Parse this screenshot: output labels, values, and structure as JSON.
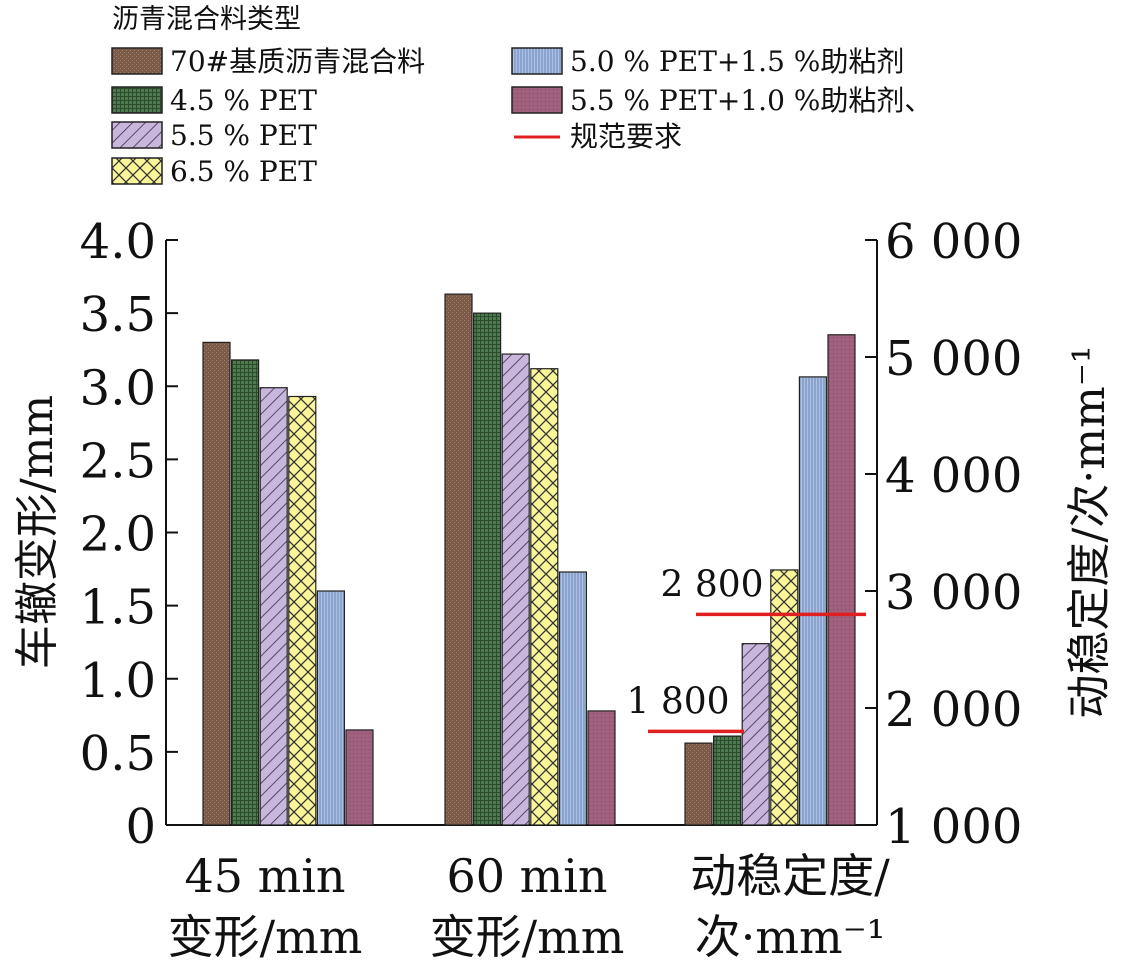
{
  "chart_data": {
    "type": "bar",
    "legend_title": "沥青混合料类型",
    "legend_placement": "top",
    "categories": [
      [
        "45 min",
        "变形/mm"
      ],
      [
        "60 min",
        "变形/mm"
      ],
      [
        "动稳定度/",
        "次·mm⁻¹"
      ]
    ],
    "ylabel": "车辙变形/mm",
    "ylim": [
      0,
      4.0
    ],
    "yticks": [
      "0",
      "0.5",
      "1.0",
      "1.5",
      "2.0",
      "2.5",
      "3.0",
      "3.5",
      "4.0"
    ],
    "y2label": "动稳定度/次·mm⁻¹",
    "y2lim": [
      1000,
      6000
    ],
    "y2ticks": [
      "1 000",
      "2 000",
      "3 000",
      "4 000",
      "5 000",
      "6 000"
    ],
    "series": [
      {
        "name": "70#基质沥青混合料",
        "values": [
          3.3,
          3.63,
          1700
        ]
      },
      {
        "name": "4.5 % PET",
        "values": [
          3.18,
          3.5,
          1760
        ]
      },
      {
        "name": "5.5 % PET",
        "values": [
          2.99,
          3.22,
          2550
        ]
      },
      {
        "name": "6.5 % PET",
        "values": [
          2.93,
          3.12,
          3180
        ]
      },
      {
        "name": "5.0 % PET+1.5 %助粘剂",
        "values": [
          1.6,
          1.73,
          4830
        ]
      },
      {
        "name": "5.5 % PET+1.0 %助粘剂、",
        "values": [
          0.65,
          0.78,
          5190
        ]
      }
    ],
    "reference": {
      "name": "规范要求",
      "color": "#e02020",
      "lines": [
        {
          "value": 1800,
          "label": "1 800"
        },
        {
          "value": 2800,
          "label": "2 800"
        }
      ]
    },
    "colors": [
      "#7b5a48",
      "#4f7a4f",
      "#c9b6dc",
      "#fbf59a",
      "#8ba3cf",
      "#a0617e"
    ],
    "grid": false
  }
}
